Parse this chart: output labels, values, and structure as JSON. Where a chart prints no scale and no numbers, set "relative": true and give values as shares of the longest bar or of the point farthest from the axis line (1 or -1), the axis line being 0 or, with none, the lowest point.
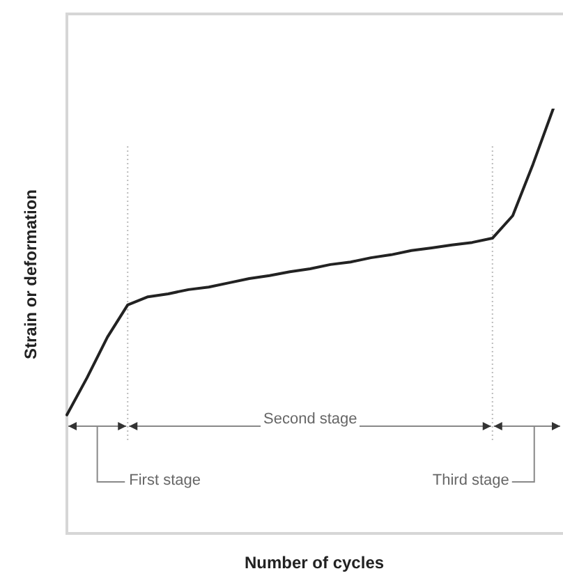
{
  "chart_data": {
    "type": "line",
    "relative": true,
    "xlabel": "Number of cycles",
    "ylabel": "Strain or deformation",
    "categories": [
      null,
      null,
      null,
      null,
      null,
      null,
      null,
      null,
      null,
      null,
      null,
      null,
      null,
      null,
      null,
      null,
      null,
      null,
      null,
      null,
      null,
      null,
      null,
      null,
      null
    ],
    "series": [
      {
        "color": "#222222",
        "values": [
          0.279,
          0.367,
          0.462,
          0.538,
          0.557,
          0.564,
          0.574,
          0.58,
          0.59,
          0.6,
          0.607,
          0.616,
          0.623,
          0.633,
          0.639,
          0.649,
          0.656,
          0.666,
          0.672,
          0.679,
          0.685,
          0.695,
          0.748,
          0.869,
          1
        ]
      }
    ],
    "annotations": [
      "First stage",
      "Second stage",
      "Third stage"
    ],
    "marker": "none",
    "line_style": "solid"
  }
}
